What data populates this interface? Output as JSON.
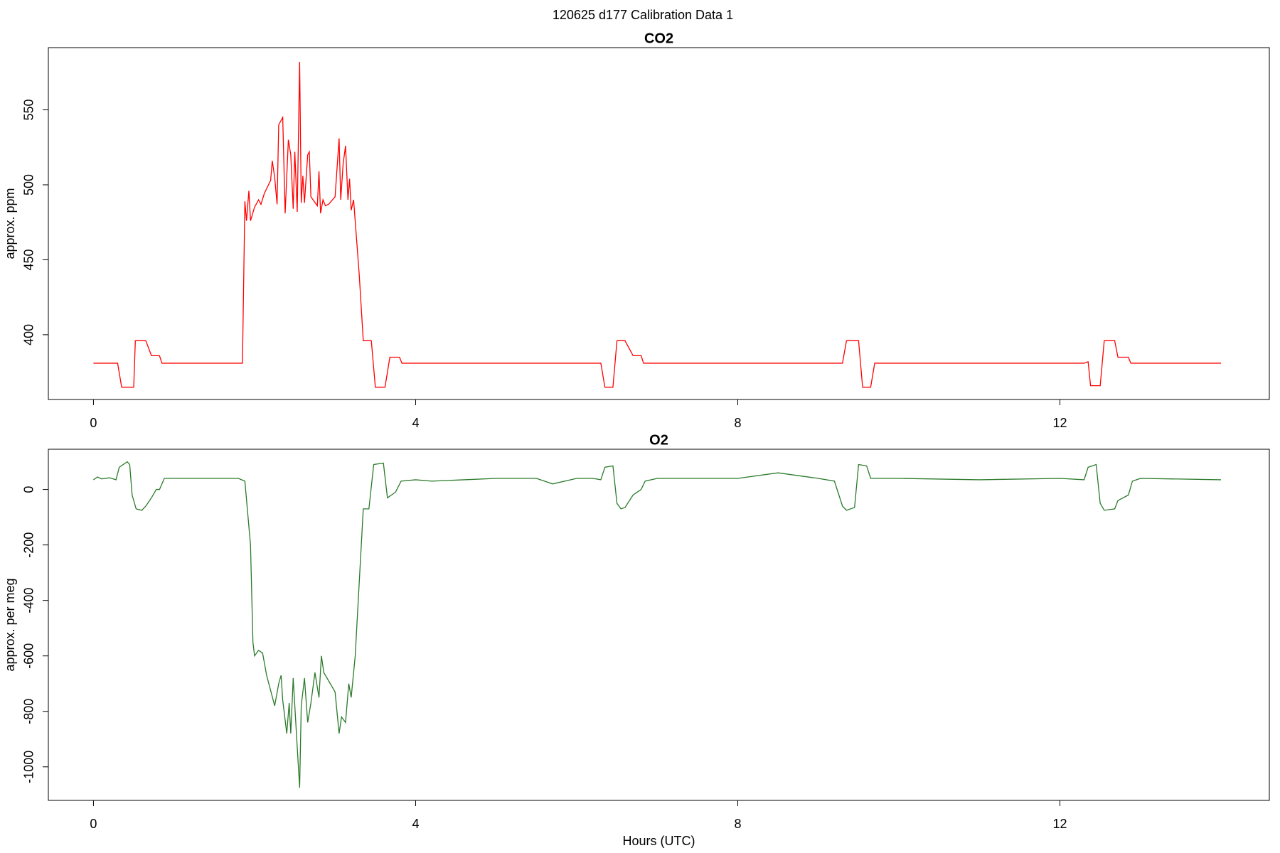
{
  "title": "120625   d177   Calibration Data 1",
  "chart_data": [
    {
      "type": "line",
      "title": "CO2",
      "ylabel": "approx. ppm",
      "xlim": [
        -0.56,
        14.6
      ],
      "xticks": [
        0,
        4,
        8,
        12
      ],
      "ylim": [
        356.8,
        591.5
      ],
      "yticks": [
        400,
        450,
        500,
        550
      ],
      "series": [
        {
          "color": "#ff0000",
          "x": [
            0,
            0.3,
            0.35,
            0.5,
            0.52,
            0.65,
            0.72,
            0.82,
            0.85,
            1.85,
            1.88,
            1.9,
            1.93,
            1.95,
            2.0,
            2.05,
            2.08,
            2.12,
            2.2,
            2.22,
            2.25,
            2.28,
            2.3,
            2.35,
            2.38,
            2.42,
            2.45,
            2.48,
            2.5,
            2.53,
            2.56,
            2.58,
            2.6,
            2.62,
            2.66,
            2.68,
            2.7,
            2.78,
            2.8,
            2.82,
            2.85,
            2.88,
            2.92,
            3.0,
            3.05,
            3.07,
            3.1,
            3.13,
            3.16,
            3.18,
            3.2,
            3.23,
            3.3,
            3.35,
            3.45,
            3.5,
            3.62,
            3.68,
            3.8,
            3.83,
            6.3,
            6.35,
            6.45,
            6.5,
            6.6,
            6.7,
            6.8,
            6.83,
            9.3,
            9.35,
            9.5,
            9.55,
            9.65,
            9.7,
            12.3,
            12.35,
            12.38,
            12.5,
            12.55,
            12.68,
            12.72,
            12.85,
            12.88,
            14.0
          ],
          "values": [
            381,
            381,
            365,
            365,
            396,
            396,
            386,
            386,
            381,
            381,
            489,
            476,
            496,
            476,
            485,
            490,
            487,
            494,
            503,
            516,
            505,
            487,
            540,
            545,
            481,
            530,
            520,
            484,
            522,
            482,
            582,
            488,
            506,
            488,
            520,
            522,
            492,
            486,
            509,
            481,
            490,
            486,
            487,
            492,
            531,
            490,
            514,
            526,
            490,
            504,
            483,
            490,
            440,
            396,
            396,
            365,
            365,
            385,
            385,
            381,
            381,
            365,
            365,
            396,
            396,
            386,
            386,
            381,
            381,
            396,
            396,
            365,
            365,
            381,
            381,
            382,
            366,
            366,
            396,
            396,
            385,
            385,
            381,
            381
          ]
        }
      ]
    },
    {
      "type": "line",
      "title": "O2",
      "ylabel": "approx. per meg",
      "xlabel": "Hours (UTC)",
      "xlim": [
        -0.56,
        14.6
      ],
      "xticks": [
        0,
        4,
        8,
        12
      ],
      "ylim": [
        -1121,
        145
      ],
      "yticks": [
        -1000,
        -800,
        -600,
        -400,
        -200,
        0
      ],
      "series": [
        {
          "color": "#2a7a2a",
          "x": [
            0,
            0.05,
            0.1,
            0.2,
            0.28,
            0.32,
            0.42,
            0.45,
            0.48,
            0.53,
            0.6,
            0.65,
            0.72,
            0.78,
            0.82,
            0.88,
            1.0,
            1.8,
            1.88,
            1.95,
            1.98,
            2.0,
            2.05,
            2.1,
            2.15,
            2.25,
            2.3,
            2.33,
            2.35,
            2.4,
            2.43,
            2.45,
            2.48,
            2.52,
            2.56,
            2.58,
            2.62,
            2.66,
            2.7,
            2.75,
            2.8,
            2.83,
            2.86,
            3.0,
            3.05,
            3.08,
            3.13,
            3.17,
            3.2,
            3.25,
            3.35,
            3.42,
            3.48,
            3.6,
            3.65,
            3.7,
            3.75,
            3.82,
            4.0,
            4.2,
            4.6,
            5.0,
            5.5,
            5.7,
            6.0,
            6.2,
            6.3,
            6.35,
            6.45,
            6.5,
            6.55,
            6.6,
            6.7,
            6.8,
            6.85,
            7.0,
            8.0,
            8.5,
            9.0,
            9.2,
            9.3,
            9.35,
            9.45,
            9.5,
            9.6,
            9.65,
            10.0,
            11.0,
            12.0,
            12.3,
            12.35,
            12.45,
            12.5,
            12.55,
            12.68,
            12.72,
            12.85,
            12.9,
            13.0,
            14.0
          ],
          "values": [
            35,
            45,
            38,
            42,
            35,
            80,
            100,
            90,
            -20,
            -70,
            -75,
            -60,
            -30,
            0,
            0,
            40,
            40,
            40,
            30,
            -200,
            -550,
            -600,
            -580,
            -590,
            -670,
            -780,
            -700,
            -670,
            -760,
            -880,
            -770,
            -880,
            -680,
            -880,
            -1075,
            -780,
            -680,
            -840,
            -770,
            -660,
            -750,
            -600,
            -660,
            -730,
            -880,
            -820,
            -840,
            -700,
            -750,
            -600,
            -70,
            -70,
            90,
            95,
            -30,
            -20,
            -10,
            30,
            35,
            30,
            35,
            40,
            40,
            20,
            40,
            40,
            35,
            80,
            85,
            -50,
            -70,
            -65,
            -20,
            0,
            30,
            40,
            40,
            60,
            40,
            30,
            -60,
            -75,
            -65,
            90,
            85,
            40,
            40,
            35,
            40,
            35,
            80,
            90,
            -50,
            -75,
            -70,
            -40,
            -20,
            30,
            40,
            35
          ]
        }
      ]
    }
  ]
}
